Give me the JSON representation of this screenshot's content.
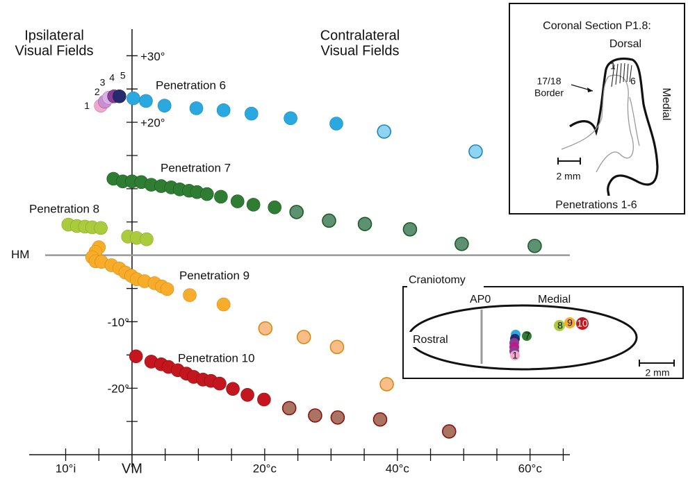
{
  "chart_data": {
    "type": "scatter",
    "xlim": [
      -15.5,
      66
    ],
    "ylim": [
      -30,
      34
    ],
    "xticks": [
      {
        "value": -10,
        "label": "10°i"
      },
      {
        "value": 0,
        "label": "VM"
      },
      {
        "value": 20,
        "label": "20°c"
      },
      {
        "value": 40,
        "label": "40°c"
      },
      {
        "value": 60,
        "label": "60°c"
      }
    ],
    "xminorticks": [
      -5,
      5,
      10,
      15,
      25,
      30,
      35,
      45,
      50,
      55,
      65
    ],
    "yticks": [
      {
        "value": 30,
        "label": "+30°"
      },
      {
        "value": 20,
        "label": "+20°"
      },
      {
        "value": 0,
        "label": "HM"
      },
      {
        "value": -10,
        "label": "-10°"
      },
      {
        "value": -20,
        "label": "-20°"
      }
    ],
    "yminorticks": [
      25,
      15,
      10,
      5,
      -5,
      -15,
      -25
    ],
    "annotations": {
      "ipsilateral": [
        "Ipsilateral",
        "Visual Fields"
      ],
      "contralateral": [
        "Contralateral",
        "Visual Fields"
      ]
    },
    "series": [
      {
        "name": "1",
        "color": "#f2a7cc",
        "edge": "#d07aa8",
        "x": [
          -4.7
        ],
        "y": [
          22.5
        ]
      },
      {
        "name": "2",
        "color": "#c98fd0",
        "edge": "#a060a8",
        "x": [
          -4.1
        ],
        "y": [
          23.1
        ]
      },
      {
        "name": "3",
        "color": "#d8b0e6",
        "edge": "#a880b8",
        "x": [
          -3.5
        ],
        "y": [
          23.7
        ]
      },
      {
        "name": "4",
        "color": "#8a3f93",
        "edge": "#5e2066",
        "x": [
          -2.7
        ],
        "y": [
          23.9
        ]
      },
      {
        "name": "5",
        "color": "#262a6e",
        "edge": "#141640",
        "x": [
          -1.9
        ],
        "y": [
          23.9
        ]
      },
      {
        "name": "Penetration 6",
        "edge": "#1b86b8",
        "point_colors": [
          "#2aa9e1",
          "#2aa9e1",
          "#2aa9e1",
          "#2aa9e1",
          "#2aa9e1",
          "#2aa9e1",
          "#2aa9e1",
          "#2aa9e1",
          "#8fd4f2",
          "#8fd4f2"
        ],
        "x": [
          0.2,
          2.1,
          4.9,
          9.7,
          13.8,
          18.0,
          23.9,
          30.8,
          38.0,
          51.8
        ],
        "y": [
          23.6,
          23.2,
          22.5,
          22.1,
          21.8,
          21.3,
          20.6,
          19.8,
          18.6,
          15.6
        ]
      },
      {
        "name": "Penetration 7",
        "edge": "#1d5a24",
        "point_colors": [
          "#2e7d32",
          "#2e7d32",
          "#2e7d32",
          "#2e7d32",
          "#2e7d32",
          "#2e7d32",
          "#2e7d32",
          "#2e7d32",
          "#2e7d32",
          "#2e7d32",
          "#2e7d32",
          "#2e7d32",
          "#2e7d32",
          "#2e7d32",
          "#2e7d32",
          "#5e9171",
          "#5e9171",
          "#5e9171",
          "#5e9171",
          "#5e9171",
          "#5e9171"
        ],
        "x": [
          -2.8,
          -1.4,
          0,
          1.4,
          2.9,
          4.4,
          5.9,
          7.2,
          8.6,
          9.8,
          11.3,
          13.4,
          15.9,
          18.3,
          21.5,
          24.8,
          29.7,
          35.1,
          41.9,
          49.7,
          60.7
        ],
        "y": [
          11.5,
          11.1,
          11.1,
          11.0,
          10.6,
          10.4,
          10.2,
          9.9,
          9.7,
          9.5,
          9.2,
          8.8,
          8.1,
          7.6,
          7.2,
          6.5,
          5.2,
          4.7,
          3.9,
          1.7,
          1.4
        ]
      },
      {
        "name": "Penetration 8",
        "edge": "#8aa82a",
        "point_colors": [
          "#aacb3c",
          "#aacb3c",
          "#aacb3c",
          "#aacb3c",
          "#aacb3c",
          "#aacb3c",
          "#aacb3c",
          "#aacb3c"
        ],
        "x": [
          -9.6,
          -8.3,
          -7.1,
          -6.0,
          -4.7,
          -0.6,
          0.7,
          2.2
        ],
        "y": [
          4.6,
          4.4,
          4.3,
          4.2,
          4.1,
          2.8,
          2.6,
          2.4
        ]
      },
      {
        "name": "Penetration 9",
        "edge": "#d88a10",
        "point_colors": [
          "#f7ad2a",
          "#f7ad2a",
          "#f7ad2a",
          "#f7ad2a",
          "#f7ad2a",
          "#f7ad2a",
          "#f7ad2a",
          "#f7ad2a",
          "#f7ad2a",
          "#f7ad2a",
          "#f7ad2a",
          "#f7ad2a",
          "#f7ad2a",
          "#f7ad2a",
          "#f7ad2a",
          "#f7ad2a",
          "#f9bd8a",
          "#f9bd8a",
          "#f9bd8a",
          "#f9bd8a"
        ],
        "x": [
          -5.0,
          -5.5,
          -6.0,
          -5.5,
          -4.6,
          -3.1,
          -1.9,
          -1.0,
          -0.1,
          0.7,
          1.9,
          3.4,
          4.5,
          5.3,
          8.7,
          13.8,
          20.1,
          25.9,
          30.9,
          38.4
        ],
        "y": [
          1.2,
          0.5,
          -0.3,
          -0.9,
          -1.0,
          -1.5,
          -2.0,
          -2.6,
          -3.1,
          -3.6,
          -3.9,
          -4.2,
          -4.7,
          -5.1,
          -6.0,
          -7.4,
          -11.0,
          -12.3,
          -13.8,
          -19.4
        ]
      },
      {
        "name": "Penetration 10",
        "edge": "#8a1010",
        "point_colors": [
          "#c4161e",
          "#c4161e",
          "#c4161e",
          "#c4161e",
          "#c4161e",
          "#c4161e",
          "#c4161e",
          "#c4161e",
          "#c4161e",
          "#c4161e",
          "#c4161e",
          "#c4161e",
          "#c4161e",
          "#aa7463",
          "#aa7463",
          "#aa7463",
          "#aa7463",
          "#aa7463"
        ],
        "x": [
          0.6,
          2.9,
          4.4,
          5.5,
          6.9,
          8.2,
          9.3,
          10.7,
          11.9,
          13.2,
          15.2,
          17.4,
          19.9,
          23.7,
          27.6,
          31.0,
          37.4,
          47.8
        ],
        "y": [
          -15.2,
          -16.0,
          -16.4,
          -16.8,
          -17.3,
          -17.8,
          -18.3,
          -18.7,
          -18.9,
          -19.3,
          -20.1,
          -21.0,
          -21.7,
          -23.0,
          -24.1,
          -24.4,
          -24.7,
          -26.5
        ]
      }
    ]
  },
  "insets": {
    "coronal": {
      "title": "Coronal Section P1.8:",
      "dorsal": "Dorsal",
      "medial": "Medial",
      "first": "1",
      "last": "6",
      "border": [
        "17/18",
        "Border"
      ],
      "scale": "2 mm",
      "caption": "Penetrations 1-6"
    },
    "craniotomy": {
      "title": "Craniotomy",
      "ap": "AP0",
      "medial": "Medial",
      "rostral": "Rostral",
      "scale": "2 mm",
      "sites": [
        "1",
        "7",
        "8",
        "9",
        "10"
      ]
    }
  }
}
